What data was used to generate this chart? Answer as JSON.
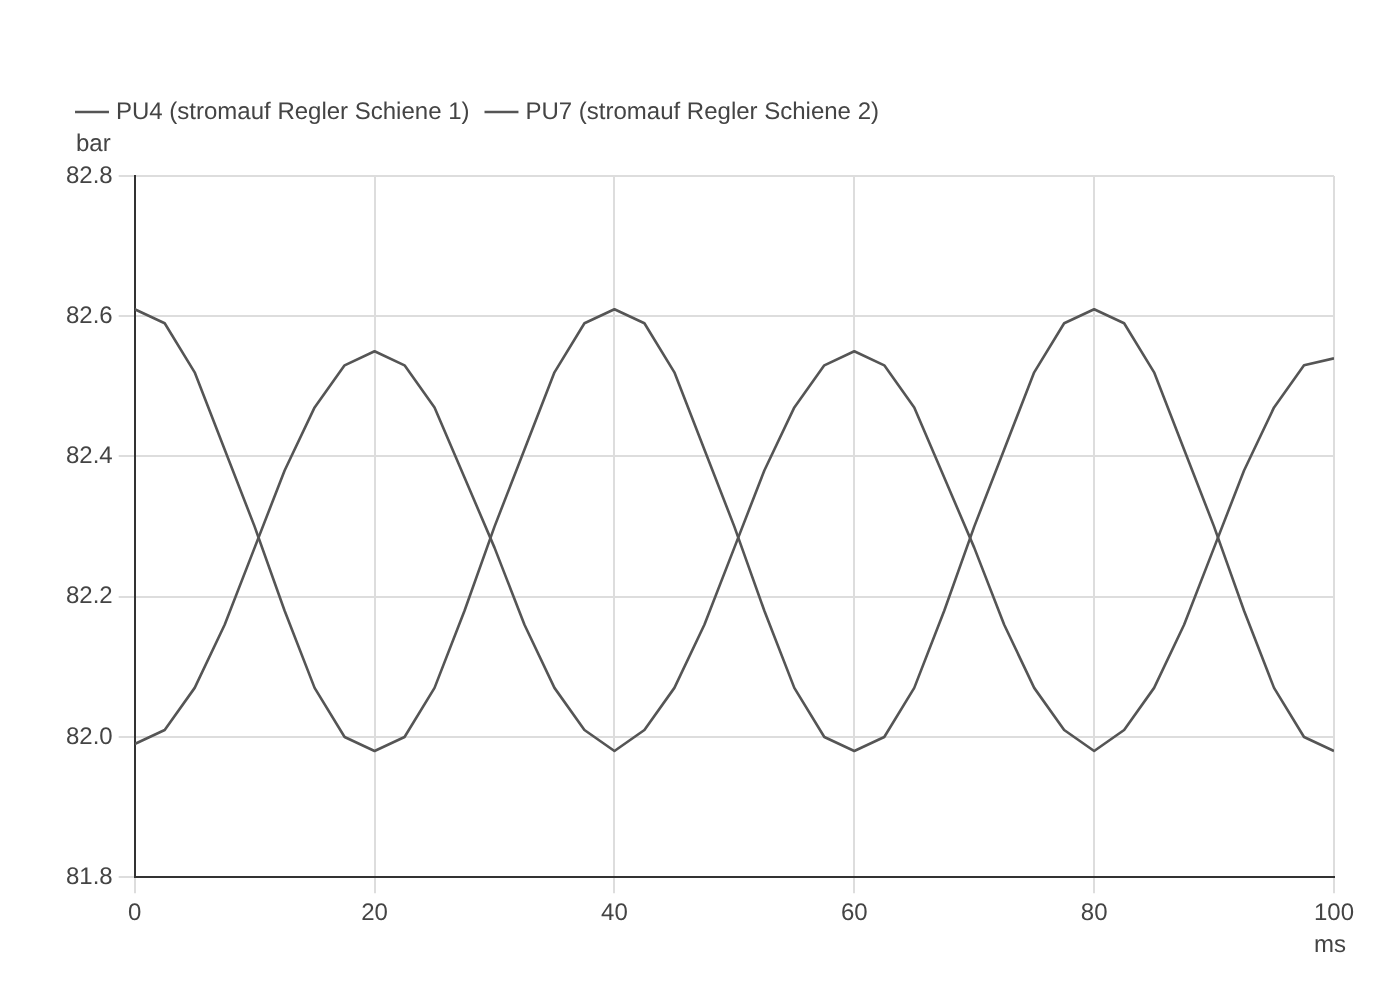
{
  "chart_data": {
    "type": "line",
    "xlabel": "ms",
    "ylabel": "bar",
    "x": [
      0,
      2.5,
      5,
      7.5,
      10,
      12.5,
      15,
      17.5,
      20,
      22.5,
      25,
      27.5,
      30,
      32.5,
      35,
      37.5,
      40,
      42.5,
      45,
      47.5,
      50,
      52.5,
      55,
      57.5,
      60,
      62.5,
      65,
      67.5,
      70,
      72.5,
      75,
      77.5,
      80,
      82.5,
      85,
      87.5,
      90,
      92.5,
      95,
      97.5,
      100
    ],
    "series": [
      {
        "name": "PU4 (stromauf Regler Schiene 1)",
        "color": "#555555",
        "values": [
          82.61,
          82.59,
          82.52,
          82.41,
          82.3,
          82.18,
          82.07,
          82.0,
          81.98,
          82.0,
          82.07,
          82.18,
          82.3,
          82.41,
          82.52,
          82.59,
          82.61,
          82.59,
          82.52,
          82.41,
          82.3,
          82.18,
          82.07,
          82.0,
          81.98,
          82.0,
          82.07,
          82.18,
          82.3,
          82.41,
          82.52,
          82.59,
          82.61,
          82.59,
          82.52,
          82.41,
          82.3,
          82.18,
          82.07,
          82.0,
          81.98
        ]
      },
      {
        "name": "PU7 (stromauf Regler Schiene 2)",
        "color": "#555555",
        "values": [
          81.99,
          82.01,
          82.07,
          82.16,
          82.27,
          82.38,
          82.47,
          82.53,
          82.55,
          82.53,
          82.47,
          82.37,
          82.27,
          82.16,
          82.07,
          82.01,
          81.98,
          82.01,
          82.07,
          82.16,
          82.27,
          82.38,
          82.47,
          82.53,
          82.55,
          82.53,
          82.47,
          82.37,
          82.27,
          82.16,
          82.07,
          82.01,
          81.98,
          82.01,
          82.07,
          82.16,
          82.27,
          82.38,
          82.47,
          82.53,
          82.54
        ]
      }
    ],
    "xlim": [
      0,
      100
    ],
    "xticks": [
      0,
      20,
      40,
      60,
      80,
      100
    ],
    "ylim": [
      81.8,
      82.8
    ],
    "yticks": [
      {
        "value": 81.8,
        "label": "81.8"
      },
      {
        "value": 82,
        "label": "82.0"
      },
      {
        "value": 82.2,
        "label": "82.2"
      },
      {
        "value": 82.4,
        "label": "82.4"
      },
      {
        "value": 82.6,
        "label": "82.6"
      },
      {
        "value": 82.8,
        "label": "82.8"
      }
    ],
    "grid": true,
    "legend": "top left",
    "marker": "none",
    "line_style": "solid"
  }
}
